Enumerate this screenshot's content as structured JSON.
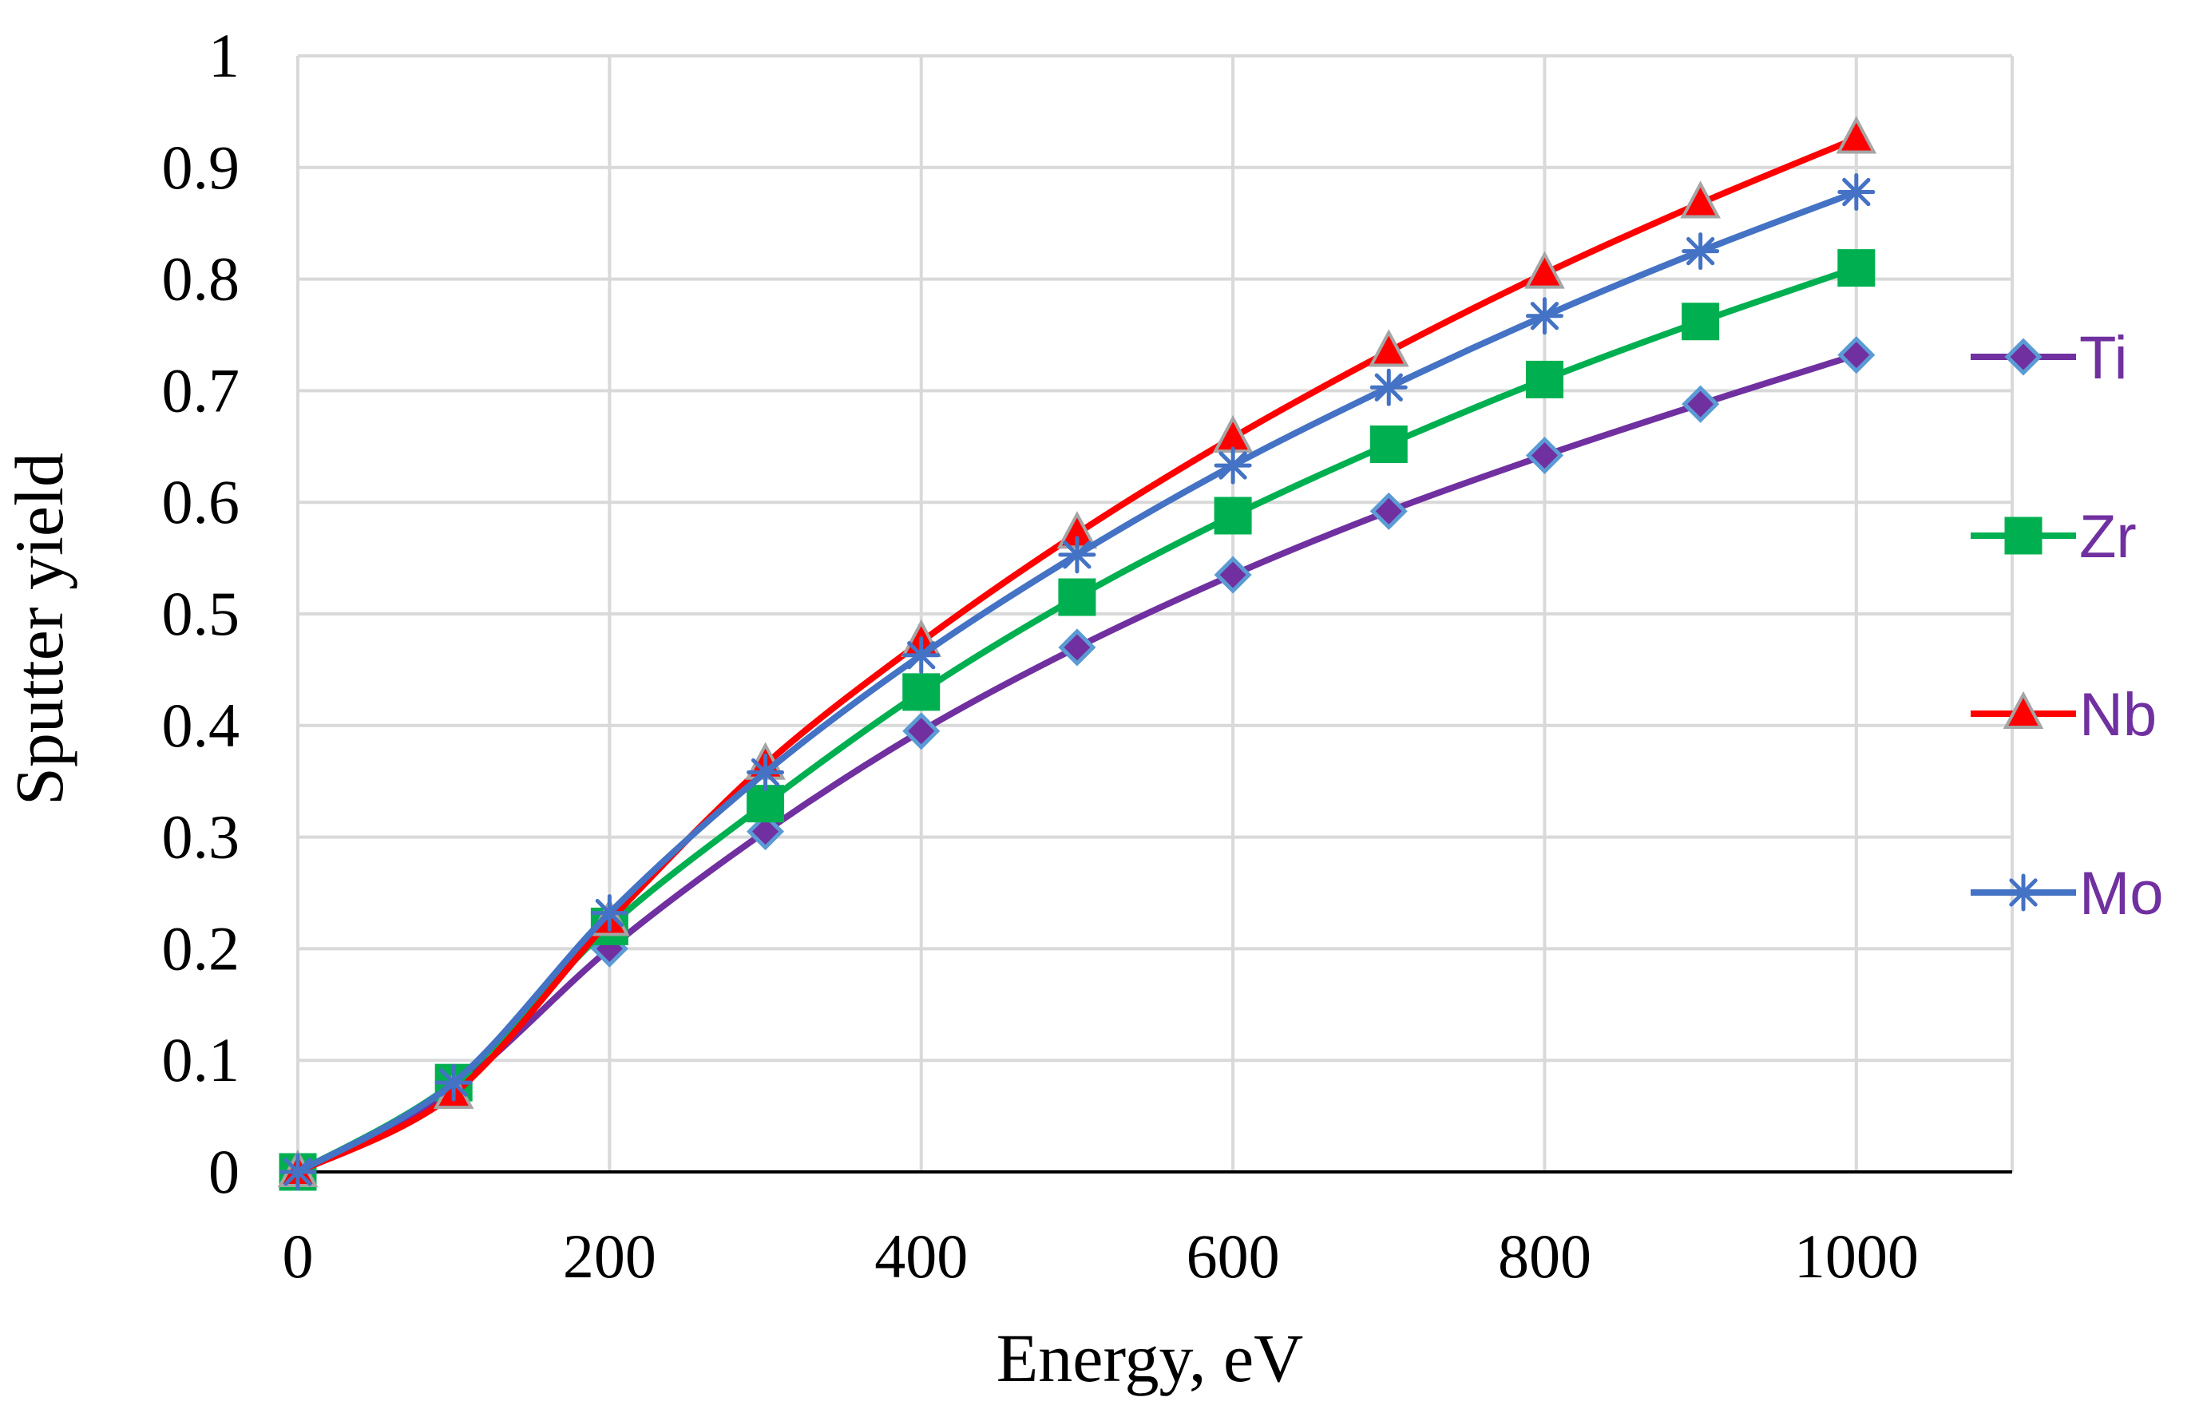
{
  "chart_data": {
    "type": "line",
    "title": "",
    "xlabel": "Energy, eV",
    "ylabel": "Sputter yield",
    "xlim": [
      0,
      1100
    ],
    "ylim": [
      0,
      1
    ],
    "grid": true,
    "legend_position": "right",
    "x_ticks": [
      0,
      200,
      400,
      600,
      800,
      1000
    ],
    "x_tick_labels": [
      "0",
      "200",
      "400",
      "600",
      "800",
      "1000"
    ],
    "y_ticks": [
      0,
      0.1,
      0.2,
      0.3,
      0.4,
      0.5,
      0.6,
      0.7,
      0.8,
      0.9,
      1
    ],
    "y_tick_labels": [
      "0",
      "0.1",
      "0.2",
      "0.3",
      "0.4",
      "0.5",
      "0.6",
      "0.7",
      "0.8",
      "0.9",
      "1"
    ],
    "x": [
      0,
      100,
      200,
      300,
      400,
      500,
      600,
      700,
      800,
      900,
      1000
    ],
    "series": [
      {
        "name": "Ti",
        "color": "#7030a0",
        "marker": "diamond",
        "marker_fill": "#7030a0",
        "marker_stroke": "#5b9bd5",
        "label_color": "#7030a0",
        "values": [
          0,
          0.075,
          0.2,
          0.305,
          0.395,
          0.47,
          0.535,
          0.592,
          0.642,
          0.688,
          0.732
        ]
      },
      {
        "name": "Zr",
        "color": "#00b050",
        "marker": "square",
        "marker_fill": "#00b050",
        "marker_stroke": "#00b050",
        "label_color": "#7030a0",
        "values": [
          0,
          0.08,
          0.22,
          0.33,
          0.43,
          0.515,
          0.588,
          0.652,
          0.71,
          0.762,
          0.81
        ]
      },
      {
        "name": "Nb",
        "color": "#ff0000",
        "marker": "triangle",
        "marker_fill": "#ff0000",
        "marker_stroke": "#a5a5a5",
        "label_color": "#7030a0",
        "values": [
          0,
          0.07,
          0.225,
          0.365,
          0.475,
          0.572,
          0.658,
          0.735,
          0.805,
          0.868,
          0.926
        ]
      },
      {
        "name": "Mo",
        "color": "#4472c4",
        "marker": "asterisk",
        "marker_fill": "none",
        "marker_stroke": "#4472c4",
        "label_color": "#7030a0",
        "values": [
          0,
          0.08,
          0.232,
          0.358,
          0.463,
          0.553,
          0.633,
          0.703,
          0.767,
          0.825,
          0.878
        ]
      }
    ]
  }
}
